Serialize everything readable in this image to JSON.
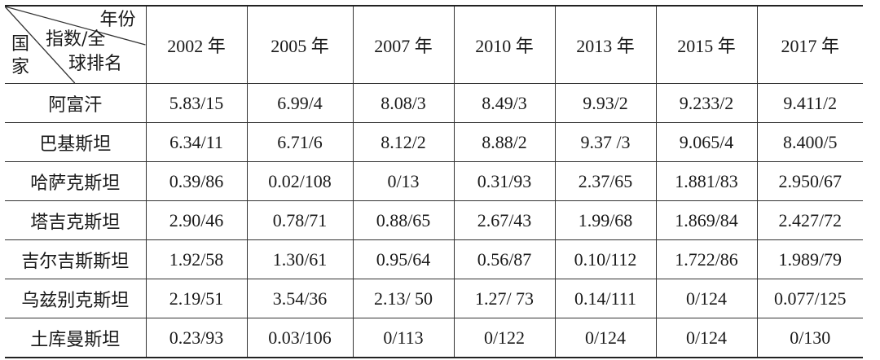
{
  "header": {
    "corner": {
      "year": "年份",
      "index": "指数/全",
      "rank": "球排名",
      "country_line1": "国",
      "country_line2": "家"
    },
    "years": [
      "2002 年",
      "2005 年",
      "2007 年",
      "2010 年",
      "2013 年",
      "2015 年",
      "2017 年"
    ]
  },
  "rows": [
    {
      "country": "阿富汗",
      "values": [
        "5.83/15",
        "6.99/4",
        "8.08/3",
        "8.49/3",
        "9.93/2",
        "9.233/2",
        "9.411/2"
      ]
    },
    {
      "country": "巴基斯坦",
      "values": [
        "6.34/11",
        "6.71/6",
        "8.12/2",
        "8.88/2",
        "9.37 /3",
        "9.065/4",
        "8.400/5"
      ]
    },
    {
      "country": "哈萨克斯坦",
      "values": [
        "0.39/86",
        "0.02/108",
        "0/13",
        "0.31/93",
        "2.37/65",
        "1.881/83",
        "2.950/67"
      ]
    },
    {
      "country": "塔吉克斯坦",
      "values": [
        "2.90/46",
        "0.78/71",
        "0.88/65",
        "2.67/43",
        "1.99/68",
        "1.869/84",
        "2.427/72"
      ]
    },
    {
      "country": "吉尔吉斯斯坦",
      "values": [
        "1.92/58",
        "1.30/61",
        "0.95/64",
        "0.56/87",
        "0.10/112",
        "1.722/86",
        "1.989/79"
      ]
    },
    {
      "country": "乌兹别克斯坦",
      "values": [
        "2.19/51",
        "3.54/36",
        "2.13/ 50",
        "1.27/ 73",
        "0.14/111",
        "0/124",
        "0.077/125"
      ]
    },
    {
      "country": "土库曼斯坦",
      "values": [
        "0.23/93",
        "0.03/106",
        "0/113",
        "0/122",
        "0/124",
        "0/124",
        "0/130"
      ]
    }
  ]
}
